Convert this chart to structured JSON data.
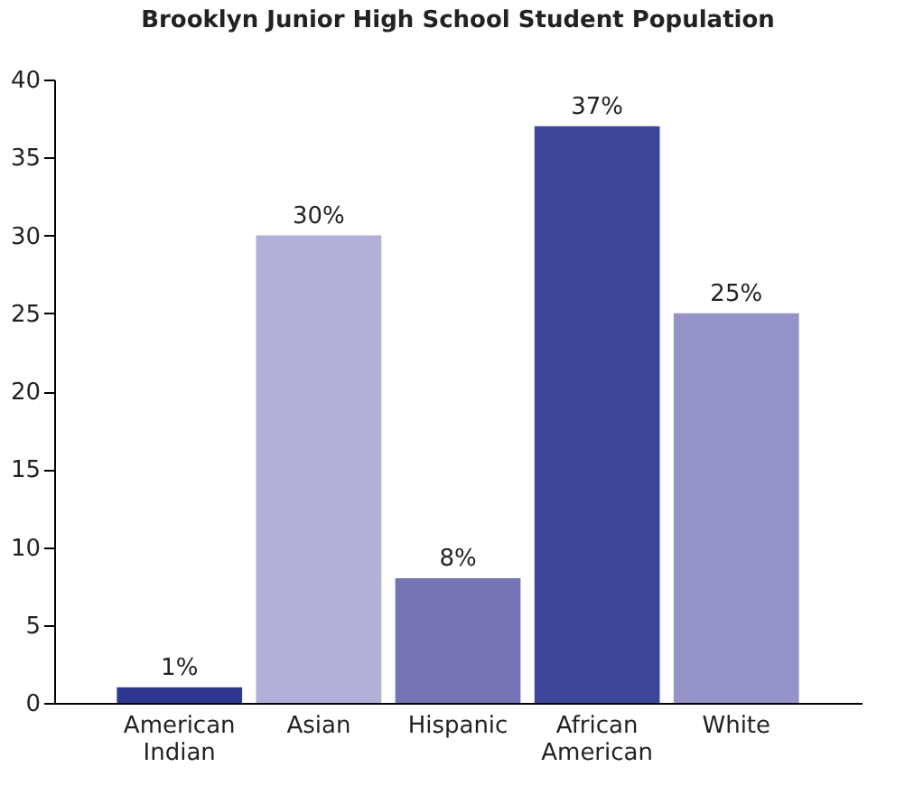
{
  "chart_data": {
    "type": "bar",
    "title": "Brooklyn Junior High School Student Population",
    "categories": [
      "American Indian",
      "Asian",
      "Hispanic",
      "African American",
      "White"
    ],
    "values": [
      1,
      30,
      8,
      37,
      25
    ],
    "colors": [
      "#2e3890",
      "#b0b0d8",
      "#7474b4",
      "#3c4699",
      "#9494c8"
    ],
    "value_labels": [
      "1%",
      "30%",
      "8%",
      "37%",
      "25%"
    ],
    "ylim": [
      0,
      40
    ],
    "yticks": [
      0,
      5,
      10,
      15,
      20,
      25,
      30,
      35,
      40
    ],
    "grid": false
  }
}
